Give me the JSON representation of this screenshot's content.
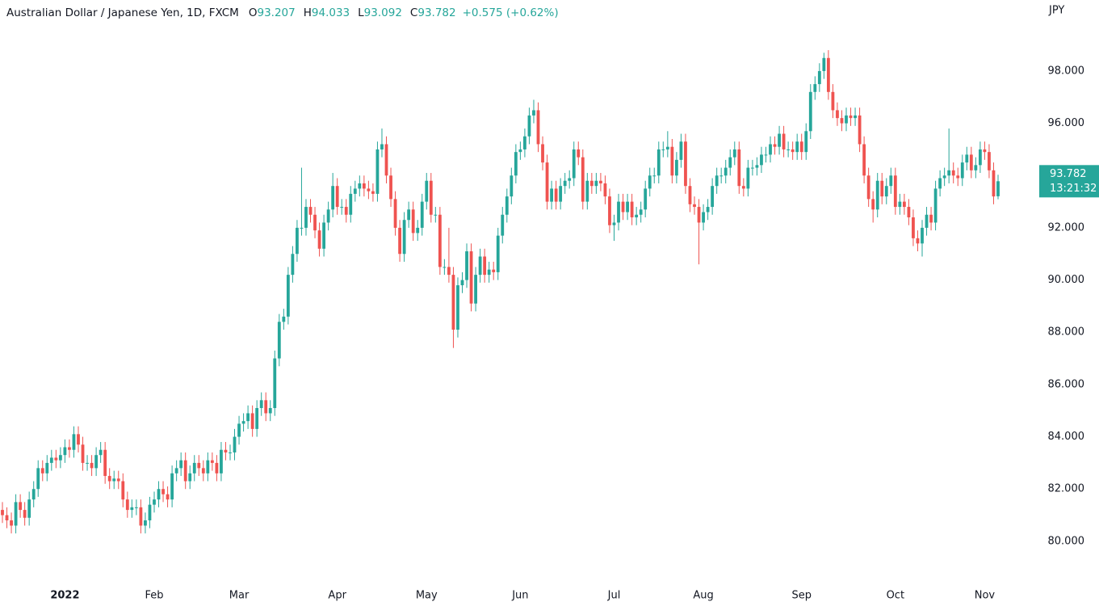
{
  "chart_data": {
    "type": "candlestick",
    "title": "Australian Dollar / Japanese Yen, 1D, FXCM",
    "ohlc_labels": [
      "O",
      "H",
      "L",
      "C"
    ],
    "change": "+0.575 (+0.62%)",
    "unit": "JPY",
    "countdown": "13:21:32",
    "up_color": "#26a69a",
    "down_color": "#ef5350",
    "ylim": [
      78.45,
      100.72
    ],
    "yticks": [
      {
        "value": 80,
        "label": "80.000"
      },
      {
        "value": 82,
        "label": "82.000"
      },
      {
        "value": 84,
        "label": "84.000"
      },
      {
        "value": 86,
        "label": "86.000"
      },
      {
        "value": 88,
        "label": "88.000"
      },
      {
        "value": 90,
        "label": "90.000"
      },
      {
        "value": 92,
        "label": "92.000"
      },
      {
        "value": 94,
        "label": "94.000"
      },
      {
        "value": 96,
        "label": "96.000"
      },
      {
        "value": 98,
        "label": "98.000"
      }
    ],
    "categories": [
      null,
      null,
      null,
      null,
      null,
      null,
      null,
      null,
      null,
      null,
      null,
      null,
      null,
      null,
      "2022",
      null,
      null,
      null,
      null,
      null,
      null,
      null,
      null,
      null,
      null,
      null,
      null,
      null,
      null,
      null,
      null,
      null,
      null,
      null,
      "Feb",
      null,
      null,
      null,
      null,
      null,
      null,
      null,
      null,
      null,
      null,
      null,
      null,
      null,
      null,
      null,
      null,
      null,
      null,
      "Mar",
      null,
      null,
      null,
      null,
      null,
      null,
      null,
      null,
      null,
      null,
      null,
      null,
      null,
      null,
      null,
      null,
      null,
      null,
      null,
      null,
      null,
      "Apr",
      null,
      null,
      null,
      null,
      null,
      null,
      null,
      null,
      null,
      null,
      null,
      null,
      null,
      null,
      null,
      null,
      null,
      null,
      null,
      "May",
      null,
      null,
      null,
      null,
      null,
      null,
      null,
      null,
      null,
      null,
      null,
      null,
      null,
      null,
      null,
      null,
      null,
      null,
      null,
      null,
      "Jun",
      null,
      null,
      null,
      null,
      null,
      null,
      null,
      null,
      null,
      null,
      null,
      null,
      null,
      null,
      null,
      null,
      null,
      null,
      null,
      null,
      "Jul",
      null,
      null,
      null,
      null,
      null,
      null,
      null,
      null,
      null,
      null,
      null,
      null,
      null,
      null,
      null,
      null,
      null,
      null,
      null,
      "Aug",
      null,
      null,
      null,
      null,
      null,
      null,
      null,
      null,
      null,
      null,
      null,
      null,
      null,
      null,
      null,
      null,
      null,
      null,
      null,
      null,
      null,
      "Sep",
      null,
      null,
      null,
      null,
      null,
      null,
      null,
      null,
      null,
      null,
      null,
      null,
      null,
      null,
      null,
      null,
      null,
      null,
      null,
      null,
      "Oct",
      null,
      null,
      null,
      null,
      null,
      null,
      null,
      null,
      null,
      null,
      null,
      null,
      null,
      null,
      null,
      null,
      null,
      null,
      null,
      "Nov",
      null,
      null,
      null
    ],
    "open": [
      81.2,
      81.0,
      80.8,
      80.6,
      81.5,
      81.2,
      80.9,
      81.6,
      82.0,
      82.8,
      82.6,
      83.0,
      83.2,
      83.1,
      83.3,
      83.6,
      83.5,
      84.1,
      83.7,
      83.0,
      83.0,
      82.8,
      83.3,
      83.5,
      82.5,
      82.3,
      82.4,
      82.3,
      81.6,
      81.2,
      81.3,
      81.3,
      80.6,
      80.8,
      81.4,
      81.6,
      82.0,
      81.8,
      81.6,
      82.6,
      82.8,
      83.1,
      82.3,
      82.6,
      83.0,
      82.8,
      82.6,
      83.1,
      83.0,
      82.6,
      83.5,
      83.4,
      83.4,
      84.0,
      84.5,
      84.6,
      84.9,
      84.3,
      85.1,
      85.4,
      84.9,
      85.1,
      87.0,
      88.4,
      88.6,
      90.2,
      91.0,
      92.0,
      92.0,
      92.8,
      92.5,
      91.9,
      91.2,
      92.2,
      92.7,
      93.6,
      92.8,
      92.8,
      92.5,
      93.3,
      93.5,
      93.7,
      93.5,
      93.4,
      93.3,
      95.0,
      95.2,
      94.0,
      93.1,
      92.0,
      91.0,
      92.3,
      92.7,
      91.8,
      92.0,
      93.0,
      93.8,
      92.5,
      92.5,
      90.5,
      90.5,
      90.2,
      88.1,
      89.8,
      90.0,
      91.1,
      89.1,
      90.2,
      90.9,
      90.2,
      90.4,
      90.3,
      91.7,
      92.5,
      93.2,
      94.0,
      94.9,
      95.0,
      95.5,
      96.3,
      96.5,
      95.2,
      94.5,
      93.0,
      93.5,
      93.0,
      93.6,
      93.8,
      93.9,
      95.0,
      94.7,
      93.0,
      93.8,
      93.6,
      93.8,
      93.7,
      93.2,
      92.1,
      92.2,
      93.0,
      92.6,
      93.0,
      92.4,
      92.5,
      92.7,
      93.5,
      94.0,
      94.0,
      95.0,
      95.0,
      95.1,
      94.0,
      94.6,
      95.3,
      93.6,
      92.9,
      92.8,
      92.2,
      92.6,
      92.8,
      93.6,
      94.0,
      94.0,
      94.3,
      94.7,
      95.0,
      93.6,
      93.5,
      94.3,
      94.3,
      94.4,
      94.8,
      94.8,
      95.2,
      95.1,
      95.6,
      95.0,
      95.0,
      94.9,
      95.3,
      94.9,
      95.7,
      97.2,
      97.5,
      98.0,
      98.5,
      97.2,
      96.5,
      96.2,
      96.0,
      96.3,
      96.2,
      96.3,
      95.2,
      94.0,
      93.1,
      92.7,
      93.8,
      93.2,
      93.6,
      94.0,
      92.8,
      93.0,
      92.8,
      92.4,
      91.6,
      91.4,
      92.0,
      92.5,
      92.2,
      93.5,
      93.9,
      94.0,
      94.2,
      94.0,
      93.9,
      94.5,
      94.8,
      94.2,
      94.4,
      95.0,
      94.9,
      94.2,
      93.207
    ],
    "high": [
      81.5,
      81.3,
      81.1,
      81.8,
      81.8,
      81.5,
      81.9,
      82.3,
      83.1,
      83.1,
      83.3,
      83.5,
      83.5,
      83.6,
      83.9,
      83.9,
      84.4,
      84.4,
      84.0,
      83.3,
      83.3,
      83.6,
      83.8,
      83.8,
      82.8,
      82.7,
      82.7,
      82.6,
      81.9,
      81.6,
      81.6,
      81.6,
      81.1,
      81.7,
      81.9,
      82.3,
      82.3,
      82.1,
      82.9,
      83.1,
      83.4,
      83.4,
      82.9,
      83.3,
      83.3,
      83.1,
      83.4,
      83.4,
      83.3,
      83.8,
      83.8,
      83.7,
      84.3,
      84.8,
      84.9,
      85.2,
      85.2,
      85.4,
      85.7,
      85.7,
      85.4,
      87.3,
      88.7,
      88.9,
      90.5,
      91.3,
      92.3,
      94.3,
      93.1,
      93.1,
      92.8,
      92.2,
      92.5,
      93.0,
      94.1,
      93.9,
      93.1,
      93.1,
      93.6,
      93.8,
      94.0,
      94.0,
      93.8,
      93.7,
      95.3,
      95.8,
      95.5,
      94.3,
      93.4,
      92.3,
      92.6,
      93.0,
      93.0,
      92.3,
      93.3,
      94.1,
      94.1,
      92.8,
      92.8,
      90.8,
      92.0,
      90.5,
      90.1,
      90.3,
      91.4,
      91.4,
      90.5,
      91.2,
      91.2,
      90.7,
      90.7,
      92.0,
      92.8,
      93.5,
      94.3,
      95.2,
      95.3,
      95.8,
      96.6,
      96.9,
      96.8,
      95.5,
      94.8,
      93.8,
      93.8,
      93.9,
      94.1,
      94.2,
      95.3,
      95.3,
      95.0,
      94.1,
      94.1,
      94.1,
      94.1,
      94.0,
      93.5,
      92.5,
      93.3,
      93.3,
      93.3,
      93.3,
      92.8,
      93.0,
      93.8,
      94.3,
      94.3,
      95.3,
      95.3,
      95.7,
      95.4,
      94.9,
      95.6,
      95.6,
      93.9,
      93.2,
      93.1,
      92.9,
      93.1,
      93.9,
      94.3,
      94.3,
      94.6,
      95.0,
      95.3,
      95.3,
      93.9,
      94.6,
      94.6,
      94.7,
      95.1,
      95.1,
      95.5,
      95.5,
      95.9,
      95.9,
      95.3,
      95.3,
      95.6,
      95.6,
      96.0,
      97.5,
      97.8,
      98.3,
      98.7,
      98.8,
      97.5,
      96.8,
      96.5,
      96.6,
      96.6,
      96.6,
      96.6,
      95.5,
      94.3,
      93.4,
      94.1,
      94.1,
      93.9,
      94.3,
      94.3,
      93.3,
      93.3,
      93.1,
      92.7,
      91.9,
      92.3,
      92.8,
      92.8,
      93.8,
      94.2,
      94.3,
      95.8,
      94.5,
      94.3,
      94.8,
      95.1,
      95.1,
      94.7,
      95.3,
      95.3,
      95.2,
      94.5,
      94.033
    ],
    "low": [
      80.7,
      80.5,
      80.3,
      80.3,
      80.9,
      80.6,
      80.6,
      81.3,
      81.7,
      82.3,
      82.3,
      82.7,
      82.8,
      82.8,
      83.0,
      83.2,
      83.2,
      83.4,
      82.7,
      82.7,
      82.5,
      82.5,
      83.0,
      82.2,
      82.0,
      82.0,
      82.0,
      81.3,
      80.9,
      80.9,
      81.0,
      80.3,
      80.3,
      80.5,
      81.1,
      81.3,
      81.5,
      81.3,
      81.3,
      82.3,
      82.5,
      82.0,
      82.0,
      82.3,
      82.5,
      82.3,
      82.3,
      82.7,
      82.3,
      82.3,
      83.1,
      83.1,
      83.1,
      83.7,
      84.2,
      84.3,
      84.0,
      84.0,
      84.8,
      84.6,
      84.6,
      84.8,
      86.7,
      88.1,
      88.3,
      89.9,
      90.7,
      91.7,
      91.7,
      92.2,
      91.6,
      90.9,
      90.9,
      91.9,
      92.4,
      92.5,
      92.5,
      92.2,
      92.2,
      93.0,
      93.2,
      93.2,
      93.1,
      93.0,
      93.0,
      94.7,
      93.7,
      92.8,
      91.7,
      90.7,
      90.7,
      92.0,
      91.5,
      91.5,
      91.7,
      92.7,
      92.2,
      92.2,
      90.2,
      90.2,
      89.9,
      87.4,
      87.8,
      89.5,
      89.7,
      88.8,
      88.8,
      89.9,
      89.9,
      89.9,
      90.0,
      90.0,
      91.4,
      92.2,
      92.9,
      93.7,
      94.6,
      94.7,
      95.2,
      96.0,
      94.9,
      94.2,
      92.7,
      92.7,
      92.7,
      92.7,
      93.3,
      93.5,
      93.6,
      94.4,
      92.7,
      92.7,
      93.3,
      93.3,
      93.4,
      92.9,
      91.8,
      91.5,
      91.9,
      92.3,
      92.3,
      92.1,
      92.1,
      92.2,
      92.4,
      93.2,
      93.7,
      93.7,
      94.7,
      94.7,
      93.7,
      93.7,
      94.3,
      93.3,
      92.6,
      92.5,
      90.6,
      91.9,
      92.3,
      92.5,
      93.3,
      93.7,
      93.7,
      94.0,
      94.4,
      93.3,
      93.2,
      93.2,
      94.0,
      94.0,
      94.1,
      94.5,
      94.5,
      94.8,
      94.8,
      94.7,
      94.7,
      94.6,
      94.6,
      94.6,
      94.6,
      95.4,
      96.9,
      97.2,
      97.7,
      96.9,
      96.2,
      95.9,
      95.7,
      95.7,
      95.9,
      95.9,
      94.9,
      93.7,
      92.8,
      92.2,
      92.4,
      92.9,
      92.9,
      93.3,
      92.5,
      92.5,
      92.5,
      92.1,
      91.3,
      91.1,
      90.9,
      91.7,
      91.9,
      91.9,
      93.2,
      93.6,
      93.7,
      93.7,
      93.6,
      93.6,
      94.2,
      93.9,
      93.9,
      94.1,
      94.6,
      93.9,
      92.9,
      93.092
    ],
    "close": [
      81.0,
      80.8,
      80.6,
      81.5,
      81.2,
      80.9,
      81.6,
      82.0,
      82.8,
      82.6,
      83.0,
      83.2,
      83.1,
      83.3,
      83.6,
      83.5,
      84.1,
      83.7,
      83.0,
      83.0,
      82.8,
      83.3,
      83.5,
      82.5,
      82.3,
      82.4,
      82.3,
      81.6,
      81.2,
      81.3,
      81.3,
      80.6,
      80.8,
      81.4,
      81.6,
      82.0,
      81.8,
      81.6,
      82.6,
      82.8,
      83.1,
      82.3,
      82.6,
      83.0,
      82.8,
      82.6,
      83.1,
      83.0,
      82.6,
      83.5,
      83.4,
      83.4,
      84.0,
      84.5,
      84.6,
      84.9,
      84.3,
      85.1,
      85.4,
      84.9,
      85.1,
      87.0,
      88.4,
      88.6,
      90.2,
      91.0,
      92.0,
      92.0,
      92.8,
      92.5,
      91.9,
      91.2,
      92.2,
      92.7,
      93.6,
      92.8,
      92.8,
      92.5,
      93.3,
      93.5,
      93.7,
      93.5,
      93.4,
      93.3,
      95.0,
      95.2,
      94.0,
      93.1,
      92.0,
      91.0,
      92.3,
      92.7,
      91.8,
      92.0,
      93.0,
      93.8,
      92.5,
      92.5,
      90.5,
      90.5,
      90.2,
      88.1,
      89.8,
      90.0,
      91.1,
      89.1,
      90.2,
      90.9,
      90.2,
      90.4,
      90.3,
      91.7,
      92.5,
      93.2,
      94.0,
      94.9,
      95.0,
      95.5,
      96.3,
      96.5,
      95.2,
      94.5,
      93.0,
      93.5,
      93.0,
      93.6,
      93.8,
      93.9,
      95.0,
      94.7,
      93.0,
      93.8,
      93.6,
      93.8,
      93.7,
      93.2,
      92.1,
      92.2,
      93.0,
      92.6,
      93.0,
      92.4,
      92.5,
      92.7,
      93.5,
      94.0,
      94.0,
      95.0,
      95.0,
      95.1,
      94.0,
      94.6,
      95.3,
      93.6,
      92.9,
      92.8,
      92.2,
      92.6,
      92.8,
      93.6,
      94.0,
      94.0,
      94.3,
      94.7,
      95.0,
      93.6,
      93.5,
      94.3,
      94.3,
      94.4,
      94.8,
      94.8,
      95.2,
      95.1,
      95.6,
      95.0,
      95.0,
      94.9,
      95.3,
      94.9,
      95.7,
      97.2,
      97.5,
      98.0,
      98.5,
      97.2,
      96.5,
      96.2,
      96.0,
      96.3,
      96.2,
      96.3,
      95.2,
      94.0,
      93.1,
      92.7,
      93.8,
      93.2,
      93.6,
      94.0,
      92.8,
      93.0,
      92.8,
      92.4,
      91.6,
      91.4,
      92.0,
      92.5,
      92.2,
      93.5,
      93.9,
      94.0,
      94.2,
      94.0,
      93.9,
      94.5,
      94.8,
      94.2,
      94.4,
      95.0,
      94.9,
      94.2,
      93.2,
      93.782
    ]
  }
}
